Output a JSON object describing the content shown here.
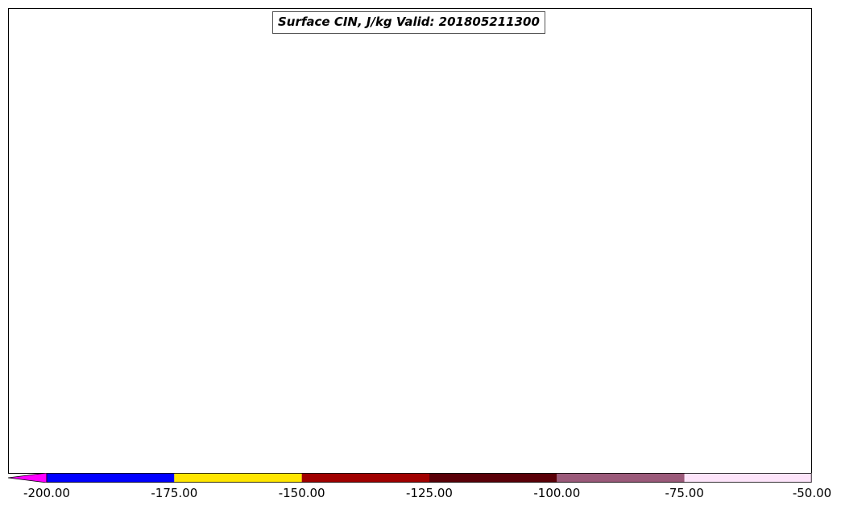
{
  "title": "Surface CIN, J/kg Valid: 201805211300",
  "colorbar": {
    "ticks": [
      "-200.00",
      "-175.00",
      "-150.00",
      "-125.00",
      "-100.00",
      "-75.00",
      "-50.00"
    ],
    "colors": [
      "#0000ff",
      "#ffe600",
      "#a00000",
      "#5a0008",
      "#9b5a7a",
      "#fde4fa"
    ],
    "extend_color": "#ff00ff"
  },
  "palette": {
    "lightest": "#fde4fa",
    "mauve": "#9b5a7a",
    "dark_red": "#5a0008",
    "red": "#a00000",
    "yellow": "#ffe600",
    "blue": "#0000ff",
    "magenta": "#ff00ff"
  }
}
